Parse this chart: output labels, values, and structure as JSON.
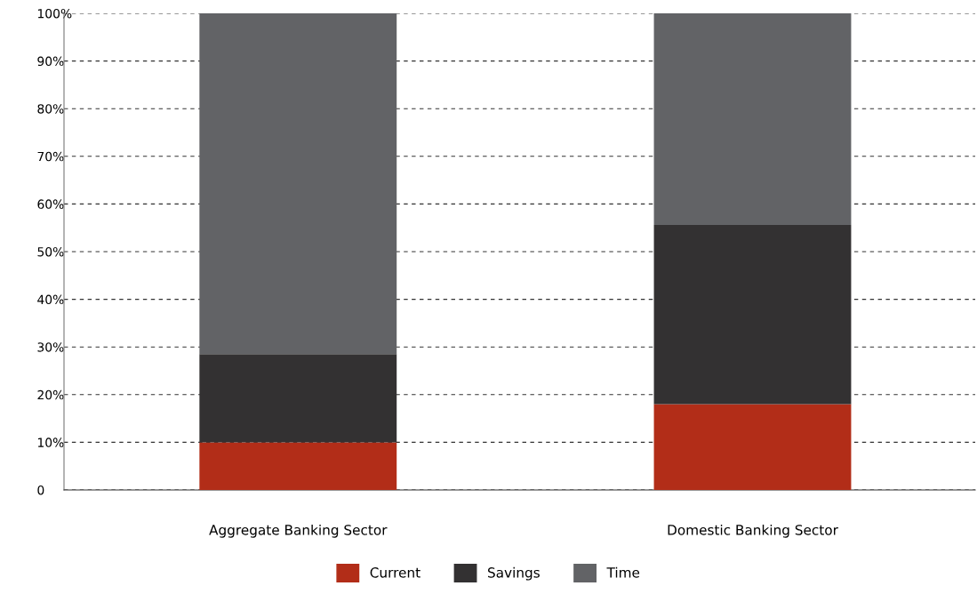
{
  "chart_data": {
    "type": "bar",
    "stacked": true,
    "categories": [
      "Aggregate Banking Sector",
      "Domestic Banking Sector"
    ],
    "series": [
      {
        "name": "Current",
        "color": "#b22d18",
        "values": [
          10,
          18
        ]
      },
      {
        "name": "Savings",
        "color": "#333132",
        "values": [
          18.5,
          37.6
        ]
      },
      {
        "name": "Time",
        "color": "#626366",
        "values": [
          71.5,
          44.4
        ]
      }
    ],
    "ylim": [
      0,
      100
    ],
    "yticks": [
      0,
      {
        "value": 10,
        "label": "10%"
      },
      {
        "value": 20,
        "label": "20%"
      },
      {
        "value": 30,
        "label": "30%"
      },
      {
        "value": 40,
        "label": "40%"
      },
      {
        "value": 50,
        "label": "50%"
      },
      {
        "value": 60,
        "label": "60%"
      },
      {
        "value": 70,
        "label": "70%"
      },
      {
        "value": 80,
        "label": "80%"
      },
      {
        "value": 90,
        "label": "90%"
      },
      {
        "value": 100,
        "label": "100%"
      }
    ],
    "grid": "y",
    "line_style": "dashed",
    "legend": "bottom"
  }
}
